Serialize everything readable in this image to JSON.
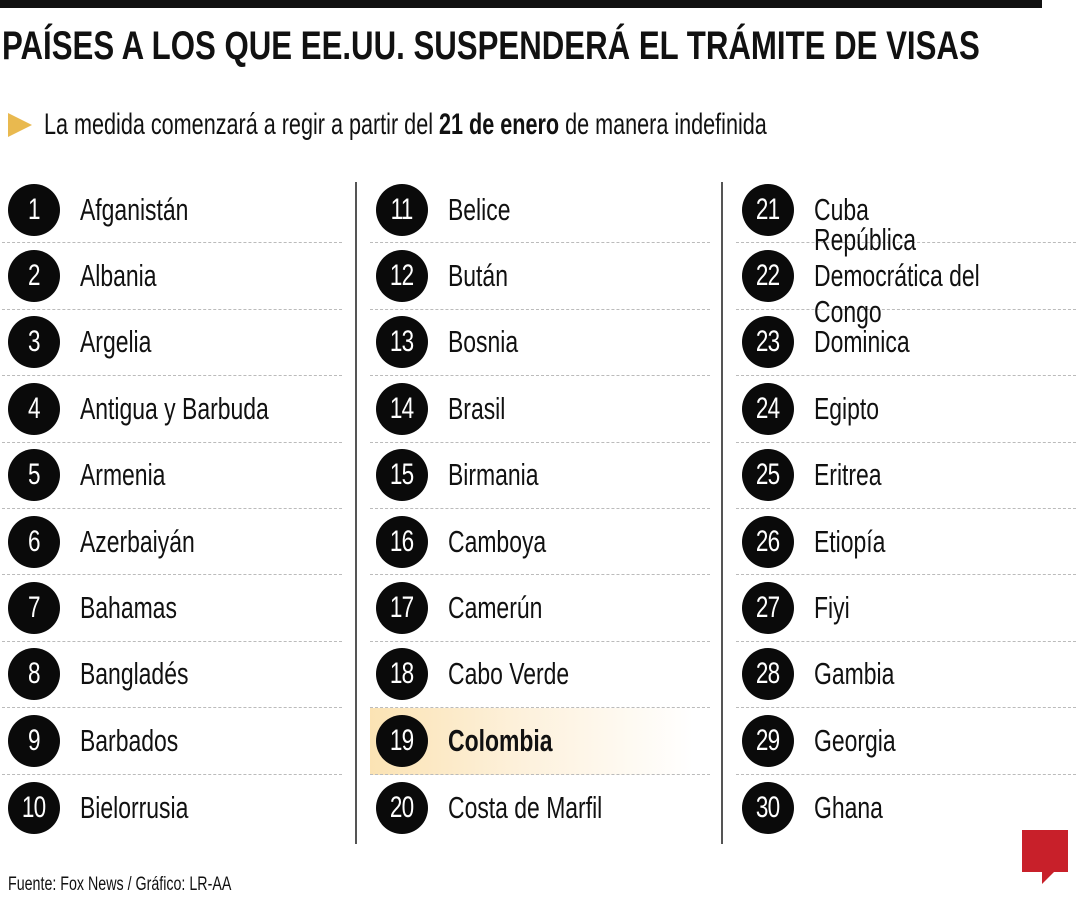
{
  "title": "PAÍSES A LOS QUE EE.UU. SUSPENDERÁ EL TRÁMITE DE VISAS",
  "subtitle": {
    "before": "La medida comenzará a regir a partir del ",
    "bold": "21 de enero",
    "after": " de manera indefinida"
  },
  "accent_color": "#e9b94f",
  "highlight_color": "#fbe3b4",
  "columns": [
    [
      {
        "num": "1",
        "name": "Afganistán"
      },
      {
        "num": "2",
        "name": "Albania"
      },
      {
        "num": "3",
        "name": "Argelia"
      },
      {
        "num": "4",
        "name": "Antigua y Barbuda"
      },
      {
        "num": "5",
        "name": "Armenia"
      },
      {
        "num": "6",
        "name": "Azerbaiyán"
      },
      {
        "num": "7",
        "name": "Bahamas"
      },
      {
        "num": "8",
        "name": "Bangladés"
      },
      {
        "num": "9",
        "name": "Barbados"
      },
      {
        "num": "10",
        "name": "Bielorrusia"
      }
    ],
    [
      {
        "num": "11",
        "name": "Belice"
      },
      {
        "num": "12",
        "name": "Bután"
      },
      {
        "num": "13",
        "name": "Bosnia"
      },
      {
        "num": "14",
        "name": "Brasil"
      },
      {
        "num": "15",
        "name": "Birmania"
      },
      {
        "num": "16",
        "name": "Camboya"
      },
      {
        "num": "17",
        "name": "Camerún"
      },
      {
        "num": "18",
        "name": "Cabo Verde"
      },
      {
        "num": "19",
        "name": "Colombia",
        "highlight": true
      },
      {
        "num": "20",
        "name": "Costa de Marfil"
      }
    ],
    [
      {
        "num": "21",
        "name": "Cuba"
      },
      {
        "num": "22",
        "name": "República Democrática del Congo"
      },
      {
        "num": "23",
        "name": "Dominica"
      },
      {
        "num": "24",
        "name": "Egipto"
      },
      {
        "num": "25",
        "name": "Eritrea"
      },
      {
        "num": "26",
        "name": "Etiopía"
      },
      {
        "num": "27",
        "name": "Fiyi"
      },
      {
        "num": "28",
        "name": "Gambia"
      },
      {
        "num": "29",
        "name": "Georgia"
      },
      {
        "num": "30",
        "name": "Ghana"
      }
    ]
  ],
  "footer": "Fuente: Fox News / Gráfico: LR-AA",
  "logo": "LR"
}
